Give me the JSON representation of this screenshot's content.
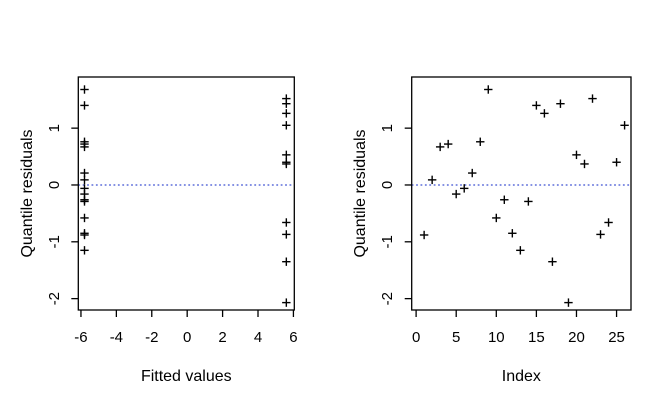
{
  "figure": {
    "background": "#ffffff"
  },
  "colors": {
    "marker": "#000000",
    "zero_line": "#3c50d2",
    "axis": "#000000",
    "text": "#000000"
  },
  "chart_data": [
    {
      "type": "scatter",
      "title": "",
      "xlabel": "Fitted values",
      "ylabel": "Quantile residuals",
      "marker": "plus",
      "grid": false,
      "legend": null,
      "xlim": [
        -6.15,
        6.05
      ],
      "ylim": [
        -2.2,
        1.9
      ],
      "x_ticks": [
        -6,
        -4,
        -2,
        0,
        2,
        4,
        6
      ],
      "y_ticks": [
        -2,
        -1,
        0,
        1
      ],
      "zero_line_y": 0,
      "points": [
        {
          "x": -5.8,
          "y": -0.88
        },
        {
          "x": -5.8,
          "y": 0.09
        },
        {
          "x": -5.8,
          "y": 0.67
        },
        {
          "x": -5.8,
          "y": 0.72
        },
        {
          "x": -5.8,
          "y": -0.16
        },
        {
          "x": -5.8,
          "y": -0.06
        },
        {
          "x": -5.8,
          "y": 0.21
        },
        {
          "x": -5.8,
          "y": 0.76
        },
        {
          "x": -5.8,
          "y": 1.68
        },
        {
          "x": -5.8,
          "y": -0.58
        },
        {
          "x": -5.8,
          "y": -0.26
        },
        {
          "x": -5.8,
          "y": -0.85
        },
        {
          "x": -5.8,
          "y": -1.15
        },
        {
          "x": -5.8,
          "y": -0.29
        },
        {
          "x": -5.8,
          "y": 1.4
        },
        {
          "x": 5.6,
          "y": 1.26
        },
        {
          "x": 5.6,
          "y": -1.35
        },
        {
          "x": 5.6,
          "y": 1.43
        },
        {
          "x": 5.6,
          "y": -2.07
        },
        {
          "x": 5.6,
          "y": 0.53
        },
        {
          "x": 5.6,
          "y": 0.37
        },
        {
          "x": 5.6,
          "y": 1.52
        },
        {
          "x": 5.6,
          "y": -0.87
        },
        {
          "x": 5.6,
          "y": -0.66
        },
        {
          "x": 5.6,
          "y": 0.4
        },
        {
          "x": 5.6,
          "y": 1.05
        }
      ]
    },
    {
      "type": "scatter",
      "title": "",
      "xlabel": "Index",
      "ylabel": "Quantile residuals",
      "marker": "plus",
      "grid": false,
      "legend": null,
      "xlim": [
        -0.55,
        26.8
      ],
      "ylim": [
        -2.2,
        1.9
      ],
      "x_ticks": [
        0,
        5,
        10,
        15,
        20,
        25
      ],
      "y_ticks": [
        -2,
        -1,
        0,
        1
      ],
      "zero_line_y": 0,
      "points": [
        {
          "x": 1,
          "y": -0.88
        },
        {
          "x": 2,
          "y": 0.09
        },
        {
          "x": 3,
          "y": 0.67
        },
        {
          "x": 4,
          "y": 0.72
        },
        {
          "x": 5,
          "y": -0.16
        },
        {
          "x": 6,
          "y": -0.06
        },
        {
          "x": 7,
          "y": 0.21
        },
        {
          "x": 8,
          "y": 0.76
        },
        {
          "x": 9,
          "y": 1.68
        },
        {
          "x": 10,
          "y": -0.58
        },
        {
          "x": 11,
          "y": -0.26
        },
        {
          "x": 12,
          "y": -0.85
        },
        {
          "x": 13,
          "y": -1.15
        },
        {
          "x": 14,
          "y": -0.29
        },
        {
          "x": 15,
          "y": 1.4
        },
        {
          "x": 16,
          "y": 1.26
        },
        {
          "x": 17,
          "y": -1.35
        },
        {
          "x": 18,
          "y": 1.43
        },
        {
          "x": 19,
          "y": -2.07
        },
        {
          "x": 20,
          "y": 0.53
        },
        {
          "x": 21,
          "y": 0.37
        },
        {
          "x": 22,
          "y": 1.52
        },
        {
          "x": 23,
          "y": -0.87
        },
        {
          "x": 24,
          "y": -0.66
        },
        {
          "x": 25,
          "y": 0.4
        },
        {
          "x": 26,
          "y": 1.05
        }
      ]
    }
  ]
}
